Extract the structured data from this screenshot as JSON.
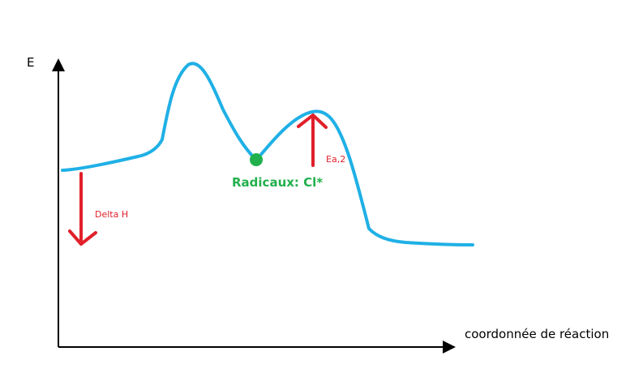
{
  "axes": {
    "y_label": "E",
    "x_label": "coordonnée de réaction"
  },
  "annotations": {
    "intermediate": "Radicaux: Cl*",
    "delta_h": "Delta H",
    "ea2": "Ea,2"
  },
  "colors": {
    "curve": "#1fb0e6",
    "intermediate": "#22b04c",
    "arrows": "#e0202a",
    "axes": "#000000"
  }
}
